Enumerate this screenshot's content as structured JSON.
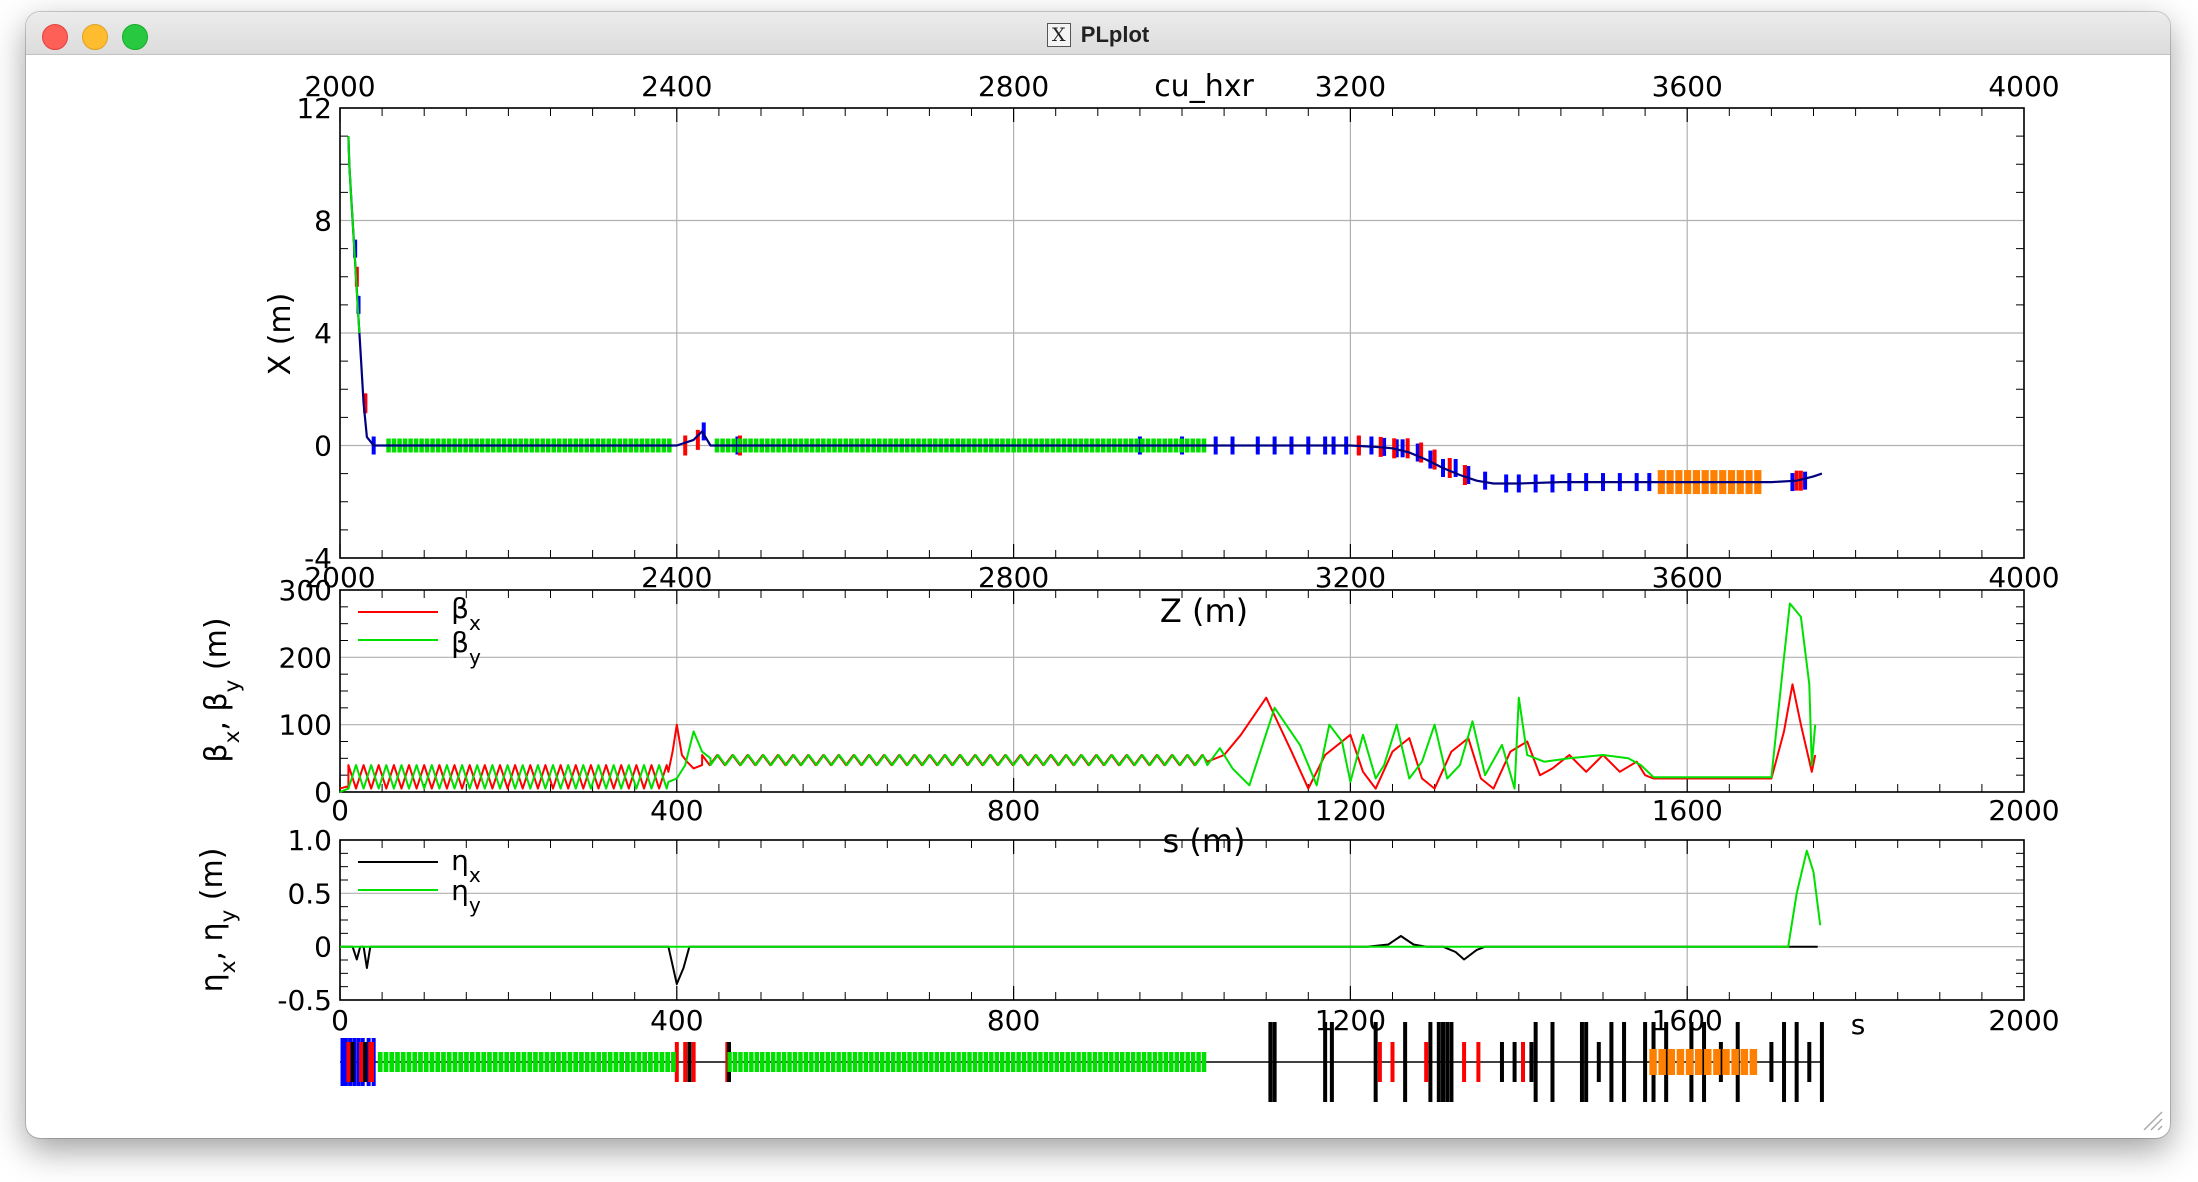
{
  "window": {
    "title": "PLplot",
    "app_icon": "x11-icon"
  },
  "colors": {
    "beta_x": "#ff0000",
    "beta_y": "#00e000",
    "eta_x": "#000000",
    "eta_y": "#00e000",
    "grid": "#b0b0b0",
    "axis": "#000000"
  },
  "chart_data": [
    {
      "type": "line",
      "title": "cu_hxr",
      "xlabel": "Z (m)",
      "ylabel": "X (m)",
      "xlim": [
        2000,
        4000
      ],
      "ylim": [
        -4,
        12
      ],
      "xticks": [
        "2000",
        "2400",
        "2800",
        "3200",
        "3600",
        "4000"
      ],
      "yticks": [
        "-4",
        "0",
        "4",
        "8",
        "12"
      ],
      "grid": true,
      "series": [
        {
          "x": [
            2010,
            2011,
            2013,
            2015,
            2017,
            2019,
            2021,
            2023,
            2025,
            2028,
            2032,
            2040,
            2050,
            2100,
            2200,
            2300,
            2400,
            2420,
            2430,
            2440,
            2500,
            2600,
            2800,
            3000,
            3050,
            3100,
            3150,
            3200,
            3230,
            3250,
            3270,
            3290,
            3310,
            3330,
            3350,
            3370,
            3400,
            3450,
            3500,
            3550,
            3600,
            3650,
            3700,
            3730,
            3750,
            3760
          ],
          "y": [
            11,
            10,
            9,
            8,
            7,
            6,
            5,
            4,
            3,
            1.5,
            0.3,
            0,
            0,
            0,
            0,
            0,
            0,
            0.2,
            0.5,
            0,
            0,
            0,
            0,
            0,
            0,
            0,
            0,
            0,
            -0.05,
            -0.1,
            -0.25,
            -0.5,
            -0.8,
            -1.05,
            -1.25,
            -1.35,
            -1.35,
            -1.3,
            -1.3,
            -1.3,
            -1.3,
            -1.3,
            -1.3,
            -1.25,
            -1.1,
            -1
          ]
        }
      ],
      "elements": [
        {
          "kind": "drift_x",
          "x": [
            2010,
            3760
          ],
          "color": "#000000",
          "tick": 0
        },
        {
          "kind": "quad",
          "x": [
            2018,
            2022,
            2030,
            2040,
            2432,
            2472,
            2950,
            3000,
            3040,
            3060,
            3090,
            3110,
            3130,
            3150,
            3170,
            3180,
            3195,
            3210,
            3225,
            3240,
            3255,
            3262,
            3280,
            3295,
            3310,
            3325,
            3340,
            3360,
            3385,
            3400,
            3420,
            3440,
            3460,
            3480,
            3500,
            3520,
            3540,
            3555,
            3725,
            3740
          ],
          "color": "#0000ff"
        },
        {
          "kind": "bend",
          "x": [
            2020,
            2030,
            2410,
            2425,
            2475,
            3210,
            3236,
            3252,
            3268,
            3284,
            3300,
            3318,
            3336,
            3730,
            3735
          ],
          "color": "#ff0000"
        },
        {
          "kind": "cavity",
          "start": 2055,
          "end": 2395,
          "n": 52,
          "color": "#00e000"
        },
        {
          "kind": "cavity",
          "start": 2445,
          "end": 3030,
          "n": 88,
          "color": "#00e000"
        },
        {
          "kind": "undulator",
          "start": 3565,
          "end": 3690,
          "n": 12,
          "color": "#ff8000"
        }
      ]
    },
    {
      "type": "line",
      "xlabel": "s (m)",
      "ylabel": "βx, βy (m)",
      "xlim": [
        0,
        2000
      ],
      "ylim": [
        0,
        300
      ],
      "xticks": [
        "0",
        "400",
        "800",
        "1200",
        "1600",
        "2000"
      ],
      "yticks": [
        "0",
        "100",
        "200",
        "300"
      ],
      "grid": true,
      "legend": {
        "placement": "top-left",
        "entries": [
          "βx",
          "βy"
        ]
      },
      "series": [
        {
          "name": "βx",
          "color": "#ff0000",
          "periodic": [
            {
              "from": 10,
              "to": 390,
              "period": 18,
              "min": 5,
              "max": 40,
              "phase": 0
            },
            {
              "from": 430,
              "to": 1030,
              "period": 18,
              "min": 40,
              "max": 55,
              "phase": 0
            }
          ],
          "points": [
            [
              0,
              5
            ],
            [
              8,
              8
            ],
            [
              10,
              5
            ],
            [
              390,
              30
            ],
            [
              395,
              60
            ],
            [
              400,
              100
            ],
            [
              406,
              55
            ],
            [
              412,
              45
            ],
            [
              420,
              35
            ],
            [
              430,
              40
            ],
            [
              1030,
              45
            ],
            [
              1050,
              55
            ],
            [
              1070,
              85
            ],
            [
              1100,
              140
            ],
            [
              1130,
              60
            ],
            [
              1150,
              5
            ],
            [
              1170,
              55
            ],
            [
              1200,
              85
            ],
            [
              1215,
              30
            ],
            [
              1230,
              5
            ],
            [
              1250,
              60
            ],
            [
              1270,
              80
            ],
            [
              1285,
              20
            ],
            [
              1300,
              5
            ],
            [
              1320,
              60
            ],
            [
              1340,
              80
            ],
            [
              1355,
              20
            ],
            [
              1370,
              5
            ],
            [
              1390,
              60
            ],
            [
              1410,
              75
            ],
            [
              1425,
              25
            ],
            [
              1440,
              35
            ],
            [
              1460,
              55
            ],
            [
              1480,
              30
            ],
            [
              1500,
              55
            ],
            [
              1520,
              30
            ],
            [
              1540,
              45
            ],
            [
              1550,
              25
            ],
            [
              1560,
              20
            ],
            [
              1700,
              20
            ],
            [
              1715,
              90
            ],
            [
              1725,
              160
            ],
            [
              1735,
              100
            ],
            [
              1748,
              30
            ],
            [
              1752,
              55
            ]
          ]
        },
        {
          "name": "βy",
          "color": "#00e000",
          "periodic": [
            {
              "from": 10,
              "to": 390,
              "period": 18,
              "min": 5,
              "max": 40,
              "phase": 0.5
            },
            {
              "from": 440,
              "to": 1030,
              "period": 18,
              "min": 40,
              "max": 55,
              "phase": 0.5
            }
          ],
          "points": [
            [
              0,
              0
            ],
            [
              10,
              5
            ],
            [
              390,
              15
            ],
            [
              400,
              20
            ],
            [
              410,
              40
            ],
            [
              420,
              90
            ],
            [
              430,
              60
            ],
            [
              440,
              50
            ],
            [
              1030,
              40
            ],
            [
              1045,
              65
            ],
            [
              1060,
              35
            ],
            [
              1080,
              10
            ],
            [
              1110,
              125
            ],
            [
              1140,
              70
            ],
            [
              1160,
              10
            ],
            [
              1175,
              100
            ],
            [
              1190,
              75
            ],
            [
              1200,
              15
            ],
            [
              1215,
              85
            ],
            [
              1230,
              20
            ],
            [
              1240,
              40
            ],
            [
              1255,
              100
            ],
            [
              1270,
              20
            ],
            [
              1285,
              45
            ],
            [
              1300,
              100
            ],
            [
              1315,
              20
            ],
            [
              1330,
              40
            ],
            [
              1345,
              105
            ],
            [
              1360,
              25
            ],
            [
              1380,
              70
            ],
            [
              1395,
              5
            ],
            [
              1400,
              140
            ],
            [
              1410,
              55
            ],
            [
              1430,
              45
            ],
            [
              1460,
              50
            ],
            [
              1500,
              55
            ],
            [
              1530,
              50
            ],
            [
              1545,
              40
            ],
            [
              1560,
              22
            ],
            [
              1700,
              22
            ],
            [
              1715,
              200
            ],
            [
              1722,
              280
            ],
            [
              1735,
              260
            ],
            [
              1745,
              160
            ],
            [
              1748,
              40
            ],
            [
              1752,
              100
            ]
          ]
        }
      ]
    },
    {
      "type": "line",
      "ylabel": "ηx, ηy (m)",
      "xlim": [
        0,
        2000
      ],
      "ylim": [
        -0.5,
        1.0
      ],
      "xticks": [
        "0",
        "400",
        "800",
        "1200",
        "1600",
        "2000"
      ],
      "yticks": [
        "-0.5",
        "0",
        "0.5",
        "1.0"
      ],
      "grid": true,
      "legend": {
        "placement": "top-left",
        "entries": [
          "ηx",
          "ηy"
        ]
      },
      "series": [
        {
          "name": "ηx",
          "color": "#000000",
          "points": [
            [
              0,
              0
            ],
            [
              15,
              0
            ],
            [
              20,
              -0.12
            ],
            [
              24,
              0
            ],
            [
              28,
              0
            ],
            [
              32,
              -0.2
            ],
            [
              36,
              0
            ],
            [
              390,
              0
            ],
            [
              400,
              -0.35
            ],
            [
              408,
              -0.2
            ],
            [
              415,
              0
            ],
            [
              1220,
              0
            ],
            [
              1245,
              0.02
            ],
            [
              1260,
              0.1
            ],
            [
              1275,
              0.02
            ],
            [
              1290,
              0
            ],
            [
              1310,
              0
            ],
            [
              1325,
              -0.05
            ],
            [
              1335,
              -0.12
            ],
            [
              1350,
              -0.03
            ],
            [
              1360,
              0
            ],
            [
              1720,
              0
            ],
            [
              1755,
              0
            ]
          ]
        },
        {
          "name": "ηy",
          "color": "#00e000",
          "points": [
            [
              0,
              0
            ],
            [
              1720,
              0
            ],
            [
              1730,
              0.5
            ],
            [
              1742,
              0.9
            ],
            [
              1750,
              0.7
            ],
            [
              1758,
              0.2
            ]
          ]
        }
      ]
    }
  ],
  "layout_bar": {
    "label": "s",
    "elements": [
      {
        "kind": "blue",
        "x": [
          3,
          7,
          12,
          17,
          22,
          27,
          34,
          40
        ],
        "color": "#0000ff"
      },
      {
        "kind": "red",
        "x": [
          10,
          25,
          36,
          38,
          400,
          410,
          420,
          460,
          1235,
          1250,
          1290,
          1335,
          1352,
          1405
        ],
        "color": "#ff0000"
      },
      {
        "kind": "black",
        "x": [
          15,
          30,
          415,
          462,
          1380,
          1395,
          1415,
          1495,
          1640,
          1700,
          1745
        ],
        "color": "#000000"
      },
      {
        "kind": "tall",
        "x": [
          1105,
          1110,
          1170,
          1178,
          1230,
          1265,
          1295,
          1305,
          1310,
          1315,
          1320,
          1420,
          1440,
          1475,
          1480,
          1510,
          1525,
          1550,
          1560,
          1575,
          1605,
          1620,
          1660,
          1715,
          1730,
          1760
        ],
        "color": "#000000"
      },
      {
        "kind": "cavity",
        "start": 45,
        "end": 400,
        "n": 52,
        "color": "#00e000"
      },
      {
        "kind": "cavity",
        "start": 460,
        "end": 1030,
        "n": 88,
        "color": "#00e000"
      },
      {
        "kind": "undulator",
        "start": 1555,
        "end": 1685,
        "n": 12,
        "color": "#ff8000"
      }
    ]
  }
}
